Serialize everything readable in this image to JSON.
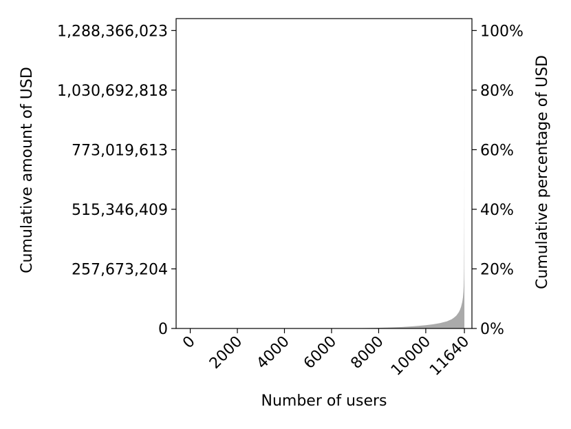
{
  "chart_data": {
    "type": "area",
    "xlabel": "Number of users",
    "ylabel_left": "Cumulative amount of USD",
    "ylabel_right": "Cumulative percentage of USD",
    "xlim": [
      -600,
      11960
    ],
    "ylim": [
      0,
      1340000000
    ],
    "x_ticks": [
      0,
      2000,
      4000,
      6000,
      8000,
      10000,
      11640
    ],
    "x_tick_labels": [
      "0",
      "2000",
      "4000",
      "6000",
      "8000",
      "10000",
      "11640"
    ],
    "y_left_ticks": [
      0,
      257673204,
      515346409,
      773019613,
      1030692818,
      1288366023
    ],
    "y_left_tick_labels": [
      "0",
      "257,673,204",
      "515,346,409",
      "773,019,613",
      "1,030,692,818",
      "1,288,366,023"
    ],
    "y_right_ticks": [
      0,
      0.2,
      0.4,
      0.6,
      0.8,
      1.0
    ],
    "y_right_tick_labels": [
      "0%",
      "20%",
      "40%",
      "60%",
      "80%",
      "100%"
    ],
    "series": [
      {
        "fill_color": "#aaaaaa",
        "x": [
          0,
          6000,
          7000,
          7500,
          8000,
          8500,
          9000,
          9500,
          10000,
          10300,
          10600,
          10900,
          11100,
          11200,
          11300,
          11400,
          11450,
          11500,
          11550,
          11580,
          11600,
          11610,
          11620,
          11625,
          11630,
          11633,
          11636,
          11638,
          11640
        ],
        "y": [
          0,
          500000,
          1200000,
          2000000,
          3000000,
          4500000,
          6500000,
          9500000,
          14000000,
          18000000,
          23000000,
          31000000,
          40000000,
          47000000,
          56000000,
          70000000,
          80000000,
          94000000,
          115000000,
          135000000,
          160000000,
          180000000,
          220000000,
          260000000,
          340000000,
          420000000,
          520000000,
          660000000,
          1288366023
        ]
      }
    ],
    "grid": false,
    "legend": "none"
  }
}
